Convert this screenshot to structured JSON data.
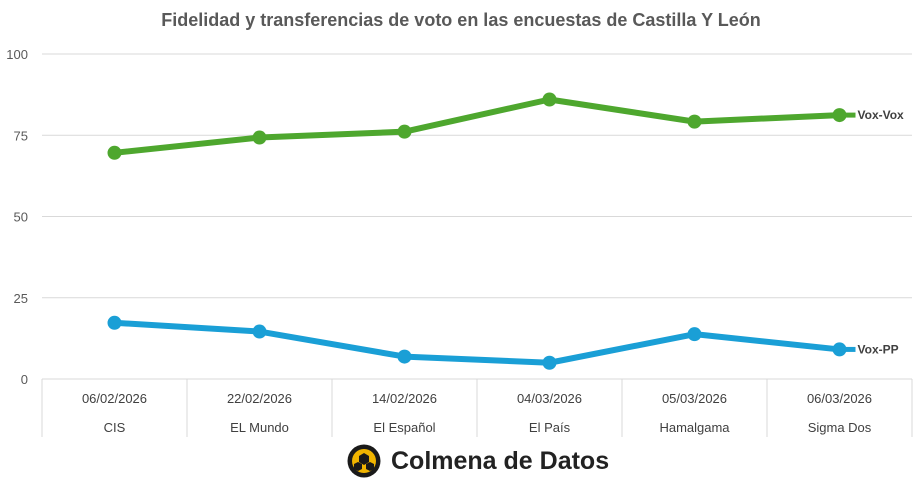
{
  "chart_data": {
    "type": "line",
    "title": "Fidelidad y transferencias de voto en las encuestas de Castilla Y León",
    "categories": [
      {
        "date": "06/02/2026",
        "pollster": "CIS"
      },
      {
        "date": "22/02/2026",
        "pollster": "EL Mundo"
      },
      {
        "date": "14/02/2026",
        "pollster": "El Español"
      },
      {
        "date": "04/03/2026",
        "pollster": "El País"
      },
      {
        "date": "05/03/2026",
        "pollster": "Hamalgama"
      },
      {
        "date": "06/03/2026",
        "pollster": "Sigma Dos"
      }
    ],
    "series": [
      {
        "name": "Vox-Vox",
        "color": "#4ea72e",
        "values": [
          69.6,
          74.3,
          76.1,
          86.0,
          79.2,
          81.2
        ]
      },
      {
        "name": "Vox-PP",
        "color": "#1a9fd6",
        "values": [
          17.3,
          14.6,
          6.9,
          5.0,
          13.8,
          9.1
        ]
      }
    ],
    "ylim": [
      0,
      100
    ],
    "yticks": [
      0,
      25,
      50,
      75,
      100
    ],
    "grid": true,
    "legend": "end-of-line labels"
  },
  "brand": {
    "name": "Colmena de Datos"
  }
}
